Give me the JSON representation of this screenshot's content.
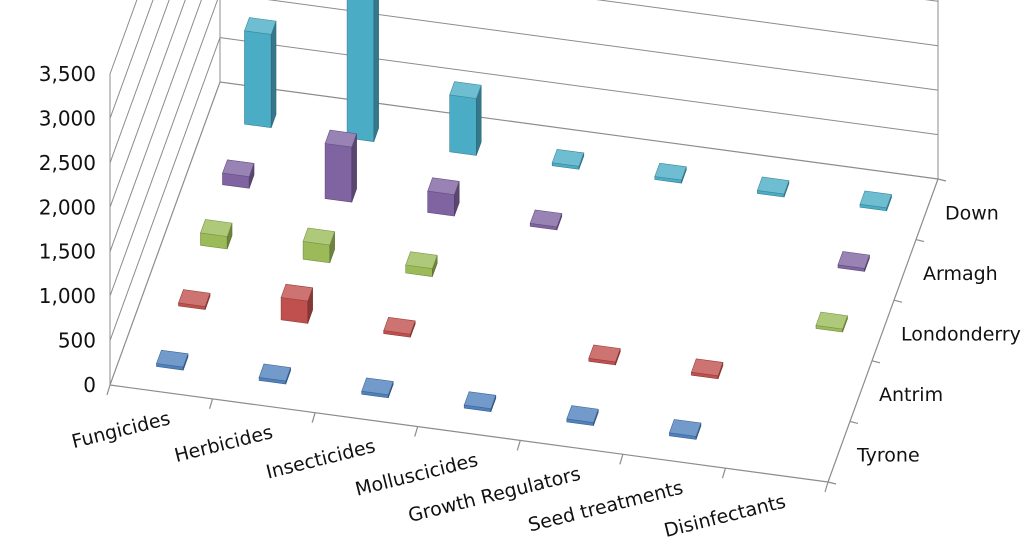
{
  "chart_data": {
    "type": "bar",
    "subtype": "3d-column",
    "title": "",
    "xlabel": "",
    "ylabel": "",
    "ylim": [
      0,
      3500
    ],
    "yticks": [
      "0",
      "500",
      "1,000",
      "1,500",
      "2,000",
      "2,500",
      "3,000",
      "3,500"
    ],
    "grid": true,
    "legend": "none",
    "categories": [
      "Fungicides",
      "Herbicides",
      "Insecticides",
      "Molluscicides",
      "Growth Regulators",
      "Seed treatments",
      "Disinfectants"
    ],
    "series": [
      {
        "name": "Tyrone",
        "color": "#4f81bd",
        "values": [
          15,
          30,
          10,
          5,
          5,
          10,
          null
        ]
      },
      {
        "name": "Antrim",
        "color": "#c0504d",
        "values": [
          10,
          250,
          10,
          null,
          10,
          10,
          null
        ]
      },
      {
        "name": "Londonderry",
        "color": "#9bbb59",
        "values": [
          140,
          200,
          90,
          null,
          null,
          null,
          10
        ]
      },
      {
        "name": "Armagh",
        "color": "#8064a2",
        "values": [
          130,
          620,
          240,
          10,
          null,
          null,
          10
        ]
      },
      {
        "name": "Down",
        "color": "#4bacc6",
        "values": [
          1050,
          3060,
          640,
          10,
          20,
          15,
          10
        ]
      }
    ]
  }
}
